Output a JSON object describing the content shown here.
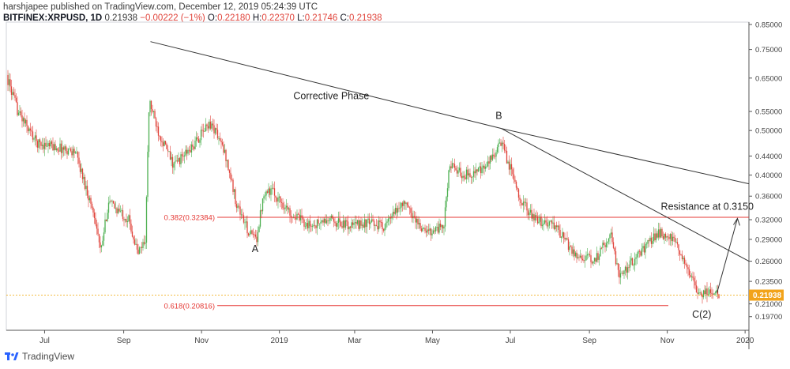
{
  "header": {
    "line1": "harshjapee published on TradingView.com, December 12, 2019 05:24:39 UTC",
    "symbol": "BITFINEX:XRPUSD, 1D",
    "last": "0.21938",
    "change": "−0.00222 (−1%)",
    "o_label": "O:",
    "o": "0.22180",
    "h_label": "H:",
    "h": "0.22370",
    "l_label": "L:",
    "l": "0.21746",
    "c_label": "C:",
    "c": "0.21938"
  },
  "footer": {
    "brand": "TradingView",
    "logo": "tradingview-logo-icon"
  },
  "colors": {
    "up": "#4caf50",
    "down": "#e0443b",
    "price_line": "#f0a500",
    "price_tag": "#f2a31a",
    "level": "#e53935",
    "trend": "#333333"
  },
  "chart_data": {
    "type": "candlestick",
    "title": "BITFINEX:XRPUSD, 1D",
    "y_scale": "log",
    "ylim": [
      0.184,
      0.86
    ],
    "y_ticks": [
      "0.85000",
      "0.75000",
      "0.65000",
      "0.55000",
      "0.50000",
      "0.44000",
      "0.40000",
      "0.36000",
      "0.32000",
      "0.29000",
      "0.26000",
      "0.23500",
      "0.21000",
      "0.19700"
    ],
    "x_ticks": [
      "Jul",
      "Sep",
      "Nov",
      "2019",
      "Mar",
      "May",
      "Jul",
      "Sep",
      "Nov",
      "2020"
    ],
    "last_price": "0.21938",
    "price_path_approx": [
      [
        "2018-06-01",
        0.66
      ],
      [
        "2018-06-10",
        0.55
      ],
      [
        "2018-06-25",
        0.47
      ],
      [
        "2018-07-10",
        0.46
      ],
      [
        "2018-07-25",
        0.45
      ],
      [
        "2018-08-10",
        0.32
      ],
      [
        "2018-08-14",
        0.27
      ],
      [
        "2018-08-20",
        0.35
      ],
      [
        "2018-09-05",
        0.32
      ],
      [
        "2018-09-12",
        0.27
      ],
      [
        "2018-09-18",
        0.29
      ],
      [
        "2018-09-21",
        0.58
      ],
      [
        "2018-09-28",
        0.5
      ],
      [
        "2018-10-10",
        0.42
      ],
      [
        "2018-10-25",
        0.46
      ],
      [
        "2018-11-07",
        0.52
      ],
      [
        "2018-11-12",
        0.5
      ],
      [
        "2018-11-20",
        0.44
      ],
      [
        "2018-11-28",
        0.35
      ],
      [
        "2018-12-08",
        0.3
      ],
      [
        "2018-12-14",
        0.29
      ],
      [
        "2018-12-20",
        0.37
      ],
      [
        "2018-12-26",
        0.37
      ],
      [
        "2019-01-10",
        0.33
      ],
      [
        "2019-01-25",
        0.31
      ],
      [
        "2019-02-10",
        0.32
      ],
      [
        "2019-02-25",
        0.31
      ],
      [
        "2019-03-10",
        0.315
      ],
      [
        "2019-03-25",
        0.31
      ],
      [
        "2019-04-08",
        0.35
      ],
      [
        "2019-04-25",
        0.3
      ],
      [
        "2019-05-10",
        0.31
      ],
      [
        "2019-05-14",
        0.42
      ],
      [
        "2019-05-25",
        0.4
      ],
      [
        "2019-06-10",
        0.41
      ],
      [
        "2019-06-24",
        0.47
      ],
      [
        "2019-07-10",
        0.35
      ],
      [
        "2019-07-20",
        0.32
      ],
      [
        "2019-08-05",
        0.31
      ],
      [
        "2019-08-20",
        0.27
      ],
      [
        "2019-09-05",
        0.26
      ],
      [
        "2019-09-18",
        0.3
      ],
      [
        "2019-09-24",
        0.24
      ],
      [
        "2019-10-10",
        0.27
      ],
      [
        "2019-10-25",
        0.3
      ],
      [
        "2019-11-05",
        0.29
      ],
      [
        "2019-11-15",
        0.26
      ],
      [
        "2019-11-25",
        0.22
      ],
      [
        "2019-12-05",
        0.225
      ],
      [
        "2019-12-12",
        0.21938
      ]
    ],
    "fib_levels": [
      {
        "label": "0.382(0.32384)",
        "value": 0.32384
      },
      {
        "label": "0.618(0.20816)",
        "value": 0.20816
      }
    ],
    "annotations": [
      {
        "text": "Corrective Phase"
      },
      {
        "text": "B"
      },
      {
        "text": "A"
      },
      {
        "text": "C(2)"
      },
      {
        "text": "Resistance at 0.3150"
      }
    ]
  }
}
